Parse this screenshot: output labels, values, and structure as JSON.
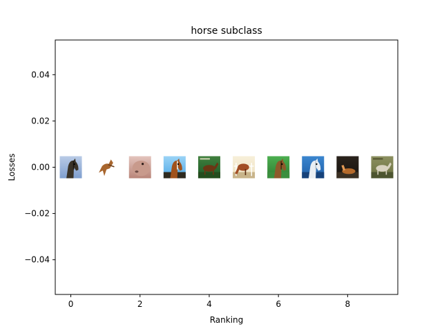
{
  "chart_data": {
    "type": "scatter",
    "title": "horse subclass",
    "xlabel": "Ranking",
    "ylabel": "Losses",
    "xlim": [
      -0.45,
      9.45
    ],
    "ylim": [
      -0.055,
      0.055
    ],
    "xticks": [
      0,
      2,
      4,
      6,
      8
    ],
    "xtick_labels": [
      "0",
      "2",
      "4",
      "6",
      "8"
    ],
    "yticks": [
      -0.04,
      -0.02,
      0.0,
      0.02,
      0.04
    ],
    "ytick_labels": [
      "−0.04",
      "−0.02",
      "0.00",
      "0.02",
      "0.04"
    ],
    "grid": false,
    "points": [
      {
        "x": 0,
        "y": 0.0,
        "thumb": "horse-head-sky"
      },
      {
        "x": 1,
        "y": 0.0,
        "thumb": "horse-cutout-jumping"
      },
      {
        "x": 2,
        "y": 0.0,
        "thumb": "horse-closeup-pink"
      },
      {
        "x": 3,
        "y": 0.0,
        "thumb": "horse-head-blue-sky"
      },
      {
        "x": 4,
        "y": 0.0,
        "thumb": "horse-green-book"
      },
      {
        "x": 5,
        "y": 0.0,
        "thumb": "horse-grazing-fence"
      },
      {
        "x": 6,
        "y": 0.0,
        "thumb": "horse-grass-field"
      },
      {
        "x": 7,
        "y": 0.0,
        "thumb": "white-horse-blue"
      },
      {
        "x": 8,
        "y": 0.0,
        "thumb": "horse-dark-background"
      },
      {
        "x": 9,
        "y": 0.0,
        "thumb": "horse-olive-field"
      }
    ]
  }
}
